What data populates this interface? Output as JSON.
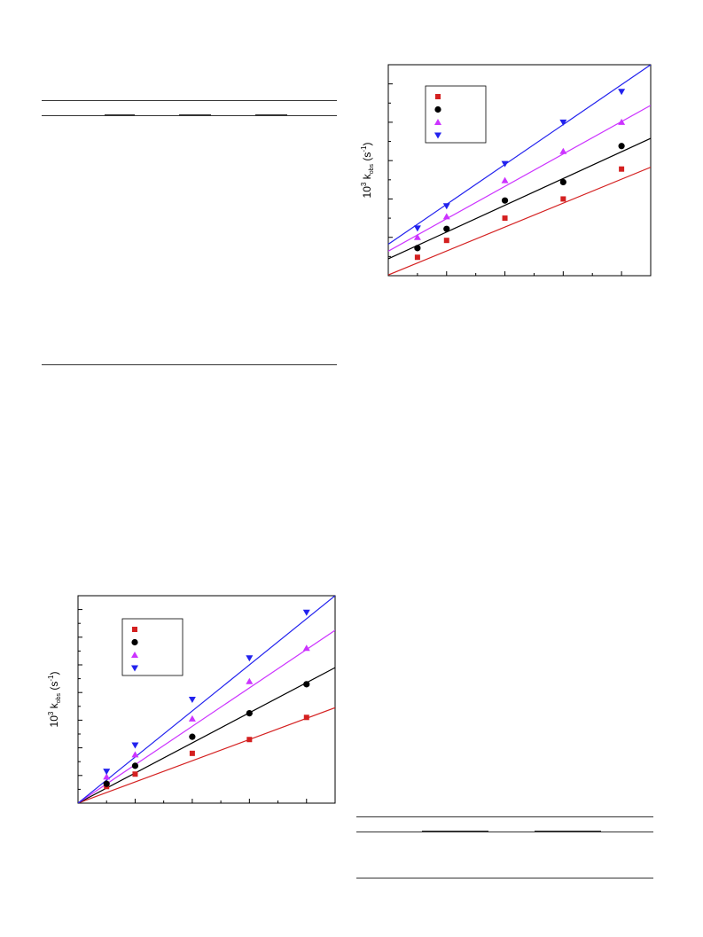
{
  "charts": {
    "chart_data": [
      {
        "type": "scatter",
        "title": "",
        "xlabel": "",
        "ylabel_main": "10",
        "ylabel_sup": "3",
        "ylabel_k": "k",
        "ylabel_sub": "obs",
        "ylabel_unit": "(s",
        "ylabel_unit_sup": "-1",
        "ylabel_close": ")",
        "grid": false,
        "legend_position": "top-left",
        "x": [
          1,
          2,
          4,
          6,
          8
        ],
        "series": [
          {
            "color": "#d42020",
            "marker": "square",
            "values": [
              1.2,
              2.3,
              3.75,
              5.0,
              6.95
            ]
          },
          {
            "color": "#000000",
            "marker": "circle",
            "values": [
              1.8,
              3.05,
              4.9,
              6.1,
              8.45
            ]
          },
          {
            "color": "#cc33ff",
            "marker": "triangle-up",
            "values": [
              2.5,
              3.85,
              6.2,
              8.1,
              10.0
            ]
          },
          {
            "color": "#2222ee",
            "marker": "triangle-down",
            "values": [
              3.1,
              4.55,
              7.3,
              10.0,
              12.0
            ]
          }
        ],
        "fits": [
          {
            "color": "#d42020",
            "x": [
              0,
              9
            ],
            "y": [
              0.05,
              7.07
            ]
          },
          {
            "color": "#000000",
            "x": [
              0,
              9
            ],
            "y": [
              1.1,
              8.95
            ]
          },
          {
            "color": "#cc33ff",
            "x": [
              0,
              9
            ],
            "y": [
              1.6,
              11.1
            ]
          },
          {
            "color": "#2222ee",
            "x": [
              0,
              9
            ],
            "y": [
              2.05,
              13.75
            ]
          }
        ],
        "xlim": [
          0,
          9
        ],
        "ylim": [
          0,
          13.75
        ]
      },
      {
        "type": "scatter",
        "title": "",
        "xlabel": "",
        "ylabel_main": "10",
        "ylabel_sup": "3",
        "ylabel_k": "k",
        "ylabel_sub": "obs",
        "ylabel_unit": "(s",
        "ylabel_unit_sup": "-1",
        "ylabel_close": ")",
        "grid": false,
        "legend_position": "top-left",
        "x": [
          1,
          2,
          4,
          6,
          8
        ],
        "series": [
          {
            "color": "#d42020",
            "marker": "square",
            "values": [
              0.6,
              1.05,
              1.8,
              2.3,
              3.1
            ]
          },
          {
            "color": "#000000",
            "marker": "circle",
            "values": [
              0.7,
              1.35,
              2.4,
              3.25,
              4.3
            ]
          },
          {
            "color": "#cc33ff",
            "marker": "triangle-up",
            "values": [
              0.95,
              1.75,
              3.05,
              4.4,
              5.6
            ]
          },
          {
            "color": "#2222ee",
            "marker": "triangle-down",
            "values": [
              1.15,
              2.1,
              3.75,
              5.25,
              6.9
            ]
          }
        ],
        "fits": [
          {
            "color": "#d42020",
            "x": [
              0,
              9
            ],
            "y": [
              0,
              3.45
            ]
          },
          {
            "color": "#000000",
            "x": [
              0,
              9
            ],
            "y": [
              0,
              4.9
            ]
          },
          {
            "color": "#cc33ff",
            "x": [
              0,
              9
            ],
            "y": [
              0,
              6.25
            ]
          },
          {
            "color": "#2222ee",
            "x": [
              0,
              9
            ],
            "y": [
              0,
              7.5
            ]
          }
        ],
        "xlim": [
          0,
          9
        ],
        "ylim": [
          0,
          7.5
        ]
      }
    ]
  }
}
